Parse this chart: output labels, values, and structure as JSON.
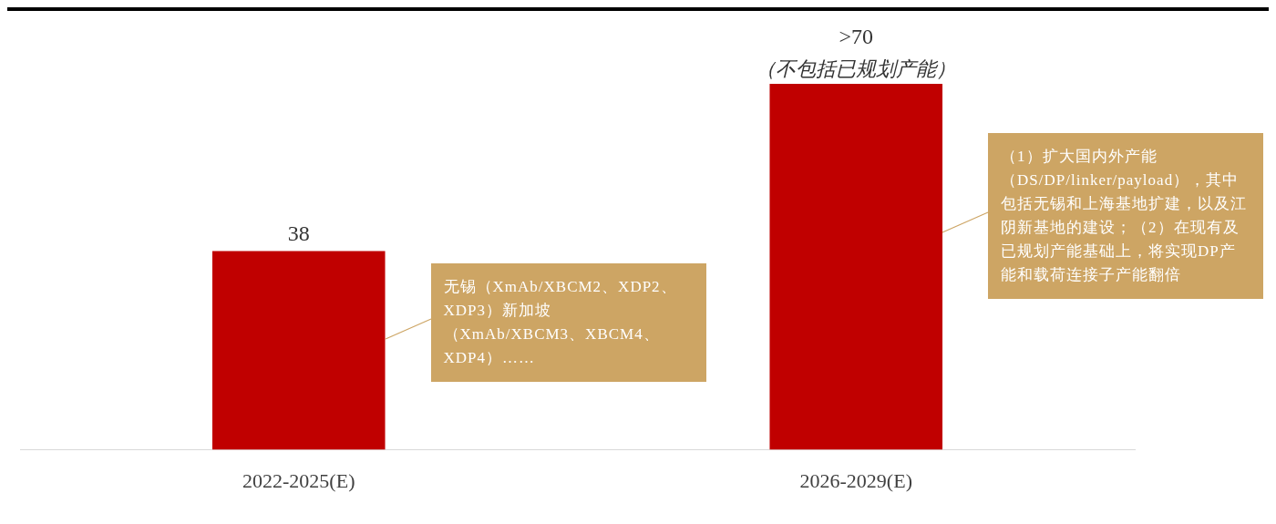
{
  "chart_data": {
    "type": "bar",
    "categories": [
      "2022-2025(E)",
      "2026-2029(E)"
    ],
    "values": [
      38,
      70
    ],
    "color": "#c00000",
    "value_labels": [
      "38",
      ">70"
    ],
    "grid": false,
    "legend": false,
    "annotations": [
      {
        "text": "（不包括已规划产能）",
        "x": "2026-2029(E)",
        "y": 70
      },
      "无锡（XmAb/XBCM2、XDP2、XDP3）新加坡（XmAb/XBCM3、XBCM4、XDP4）……",
      "（1）扩大国内外产能（DS/DP/linker/payload），其中包括无锡和上海基地扩建，以及江阴新基地的建设；（2）在现有及已规划产能基础上，将实现DP产能和载荷连接子产能翻倍"
    ]
  }
}
